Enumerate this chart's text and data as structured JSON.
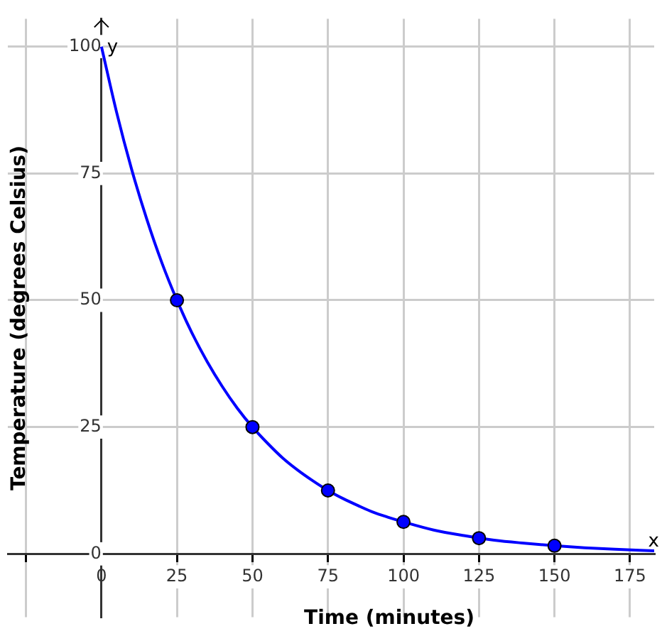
{
  "chart_data": {
    "type": "line",
    "xlabel": "Time (minutes)",
    "ylabel": "Temperature (degrees Celsius)",
    "annotations": [
      "x",
      "y"
    ],
    "series": [
      {
        "type": "line",
        "color": "#0000ff",
        "marker": "none",
        "x": [
          0,
          5,
          10,
          15,
          20,
          25,
          30,
          35,
          40,
          45,
          50,
          55,
          60,
          65,
          70,
          75,
          80,
          85,
          90,
          95,
          100,
          110,
          120,
          130,
          140,
          150,
          160,
          170,
          183
        ],
        "values": [
          100,
          87.1,
          75.8,
          66,
          57.4,
          50,
          43.5,
          37.9,
          33,
          28.7,
          25,
          21.8,
          18.9,
          16.5,
          14.4,
          12.5,
          10.9,
          9.5,
          8.2,
          7.2,
          6.3,
          4.7,
          3.6,
          2.7,
          2.1,
          1.6,
          1.2,
          0.9,
          0.6
        ]
      },
      {
        "type": "scatter",
        "color": "#0000ff",
        "marker": "circle",
        "x": [
          25,
          50,
          75,
          100,
          125,
          150
        ],
        "values": [
          50,
          25,
          12.5,
          6.3,
          3.1,
          1.6
        ]
      }
    ],
    "xlim": [
      -31,
      183
    ],
    "xticks": [
      {
        "value": -25,
        "label": null
      },
      0,
      25,
      50,
      75,
      100,
      125,
      150,
      175
    ],
    "ylim": [
      -12.5,
      105.5
    ],
    "yticks": [
      0,
      25,
      50,
      75,
      100
    ],
    "grid": true,
    "legend": false
  }
}
